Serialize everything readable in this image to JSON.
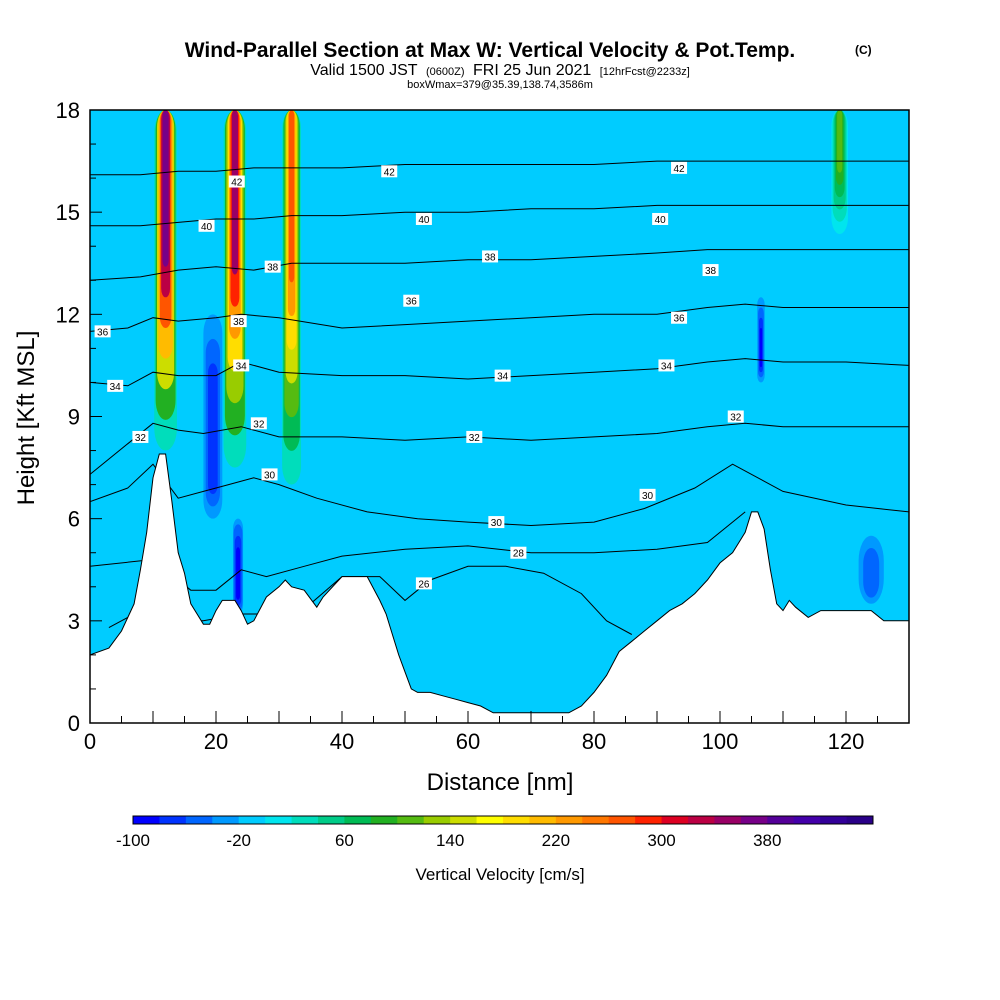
{
  "title": {
    "main": "Wind-Parallel Section at Max W: Vertical Velocity & Pot.Temp.",
    "copyright": "(C)",
    "valid_prefix": "Valid 1500 JST",
    "valid_utc": "(0600Z)",
    "valid_date": "FRI 25 Jun 2021",
    "forecast": "[12hrFcst@2233z]",
    "box_info": "boxWmax=379@35.39,138.74,3586m"
  },
  "chart_data": {
    "type": "heatmap",
    "xlabel": "Distance [nm]",
    "ylabel": "Height [Kft MSL]",
    "xlim": [
      0,
      130
    ],
    "ylim": [
      0,
      18
    ],
    "x_ticks": [
      0,
      20,
      40,
      60,
      80,
      100,
      120
    ],
    "x_tick_labels": [
      "0",
      "20",
      "40",
      "60",
      "80",
      "100",
      "120"
    ],
    "y_ticks": [
      0,
      3,
      6,
      9,
      12,
      15,
      18
    ],
    "y_tick_labels": [
      "0",
      "3",
      "6",
      "9",
      "12",
      "15",
      "18"
    ],
    "background_vv_cms": -20,
    "terrain": [
      [
        0,
        2.0
      ],
      [
        3,
        2.2
      ],
      [
        5,
        2.7
      ],
      [
        7,
        3.5
      ],
      [
        8,
        4.5
      ],
      [
        9,
        5.6
      ],
      [
        10,
        7.2
      ],
      [
        11,
        7.9
      ],
      [
        12,
        7.9
      ],
      [
        13,
        6.5
      ],
      [
        14,
        5.0
      ],
      [
        15,
        4.4
      ],
      [
        16,
        3.5
      ],
      [
        17,
        3.2
      ],
      [
        18,
        2.9
      ],
      [
        19,
        2.9
      ],
      [
        20,
        3.3
      ],
      [
        21,
        3.6
      ],
      [
        22,
        3.6
      ],
      [
        23,
        3.6
      ],
      [
        24,
        3.3
      ],
      [
        25,
        2.9
      ],
      [
        26,
        3.0
      ],
      [
        28,
        3.7
      ],
      [
        30,
        4.0
      ],
      [
        31,
        4.2
      ],
      [
        32,
        4.0
      ],
      [
        34,
        3.9
      ],
      [
        36,
        3.4
      ],
      [
        37,
        3.7
      ],
      [
        39,
        4.1
      ],
      [
        40,
        4.3
      ],
      [
        44,
        4.3
      ],
      [
        46,
        3.6
      ],
      [
        47,
        3.2
      ],
      [
        48,
        2.6
      ],
      [
        49,
        2.0
      ],
      [
        50,
        1.5
      ],
      [
        51,
        1.0
      ],
      [
        52,
        0.9
      ],
      [
        54,
        0.9
      ],
      [
        56,
        0.8
      ],
      [
        58,
        0.7
      ],
      [
        60,
        0.6
      ],
      [
        62,
        0.5
      ],
      [
        64,
        0.3
      ],
      [
        70,
        0.3
      ],
      [
        76,
        0.3
      ],
      [
        78,
        0.5
      ],
      [
        80,
        0.9
      ],
      [
        82,
        1.4
      ],
      [
        84,
        2.1
      ],
      [
        86,
        2.4
      ],
      [
        88,
        2.7
      ],
      [
        90,
        3.0
      ],
      [
        92,
        3.3
      ],
      [
        94,
        3.5
      ],
      [
        96,
        3.8
      ],
      [
        98,
        4.2
      ],
      [
        100,
        4.7
      ],
      [
        102,
        5.0
      ],
      [
        103,
        5.3
      ],
      [
        104,
        5.6
      ],
      [
        105,
        6.2
      ],
      [
        106,
        6.2
      ],
      [
        107,
        5.7
      ],
      [
        108,
        4.5
      ],
      [
        109,
        3.5
      ],
      [
        110,
        3.3
      ],
      [
        111,
        3.6
      ],
      [
        112,
        3.4
      ],
      [
        114,
        3.1
      ],
      [
        116,
        3.3
      ],
      [
        118,
        3.3
      ],
      [
        124,
        3.3
      ],
      [
        126,
        3.0
      ],
      [
        130,
        3.0
      ]
    ],
    "updraft_columns": [
      {
        "x": 12.0,
        "width": 1.8,
        "z_bottom": 8.0,
        "z_top": 18.0,
        "peak_vv_cms": 379
      },
      {
        "x": 23.0,
        "width": 1.8,
        "z_bottom": 7.5,
        "z_top": 18.0,
        "peak_vv_cms": 340
      },
      {
        "x": 32.0,
        "width": 1.5,
        "z_bottom": 7.0,
        "z_top": 18.0,
        "peak_vv_cms": 260
      },
      {
        "x": 119.0,
        "width": 1.5,
        "z_bottom": 14.0,
        "z_top": 18.0,
        "peak_vv_cms": 100
      }
    ],
    "downdraft_columns": [
      {
        "x": 19.5,
        "width": 1.5,
        "z_bottom": 6.0,
        "z_top": 12.0,
        "peak_vv_cms": -80
      },
      {
        "x": 23.5,
        "width": 0.8,
        "z_bottom": 3.2,
        "z_top": 6.0,
        "peak_vv_cms": -100
      },
      {
        "x": 106.5,
        "width": 0.6,
        "z_bottom": 10.0,
        "z_top": 12.5,
        "peak_vv_cms": -90
      },
      {
        "x": 124.0,
        "width": 2.0,
        "z_bottom": 3.5,
        "z_top": 5.5,
        "peak_vv_cms": -60
      }
    ],
    "theta_contours": [
      {
        "value": 26,
        "label": "26",
        "label_at": [
          53,
          4.1
        ],
        "points": [
          [
            3,
            2.8
          ],
          [
            7,
            3.2
          ],
          [
            12,
            3.0
          ],
          [
            18,
            3.0
          ],
          [
            24,
            3.2
          ],
          [
            28,
            3.2
          ],
          [
            35,
            3.5
          ],
          [
            40,
            4.3
          ],
          [
            46,
            4.3
          ],
          [
            50,
            3.6
          ],
          [
            54,
            4.2
          ],
          [
            60,
            4.6
          ],
          [
            66,
            4.6
          ],
          [
            72,
            4.4
          ],
          [
            78,
            3.8
          ],
          [
            82,
            3.0
          ],
          [
            86,
            2.6
          ]
        ]
      },
      {
        "value": 28,
        "label": "28",
        "label_at": [
          68,
          5.0
        ],
        "points": [
          [
            0,
            4.6
          ],
          [
            10,
            4.8
          ],
          [
            16,
            3.9
          ],
          [
            20,
            3.9
          ],
          [
            24,
            4.5
          ],
          [
            28,
            4.3
          ],
          [
            34,
            4.6
          ],
          [
            40,
            4.9
          ],
          [
            50,
            5.1
          ],
          [
            60,
            5.2
          ],
          [
            70,
            5.0
          ],
          [
            80,
            5.0
          ],
          [
            90,
            5.1
          ],
          [
            98,
            5.3
          ],
          [
            104,
            6.2
          ]
        ]
      },
      {
        "value": 30,
        "label": "30",
        "label_at": [
          28.5,
          7.3
        ],
        "points": [
          [
            0,
            6.5
          ],
          [
            6,
            6.9
          ],
          [
            10,
            7.6
          ],
          [
            14,
            6.6
          ],
          [
            18,
            6.8
          ],
          [
            22,
            7.0
          ],
          [
            26,
            7.2
          ],
          [
            30,
            7.0
          ],
          [
            36,
            6.6
          ],
          [
            44,
            6.2
          ],
          [
            52,
            6.0
          ],
          [
            60,
            5.9
          ],
          [
            70,
            5.8
          ],
          [
            80,
            5.9
          ],
          [
            88,
            6.3
          ],
          [
            96,
            6.9
          ],
          [
            102,
            7.6
          ],
          [
            110,
            6.8
          ],
          [
            120,
            6.4
          ],
          [
            130,
            6.2
          ]
        ]
      },
      {
        "value": 32,
        "label": "32",
        "label_at": [
          8,
          8.4
        ],
        "points": [
          [
            0,
            7.3
          ],
          [
            6,
            8.2
          ],
          [
            10,
            8.8
          ],
          [
            14,
            8.6
          ],
          [
            18,
            8.5
          ],
          [
            24,
            8.7
          ],
          [
            30,
            8.4
          ],
          [
            40,
            8.4
          ],
          [
            50,
            8.3
          ],
          [
            60,
            8.4
          ],
          [
            70,
            8.3
          ],
          [
            80,
            8.4
          ],
          [
            90,
            8.5
          ],
          [
            98,
            8.7
          ],
          [
            104,
            8.8
          ],
          [
            110,
            8.7
          ],
          [
            120,
            8.7
          ],
          [
            130,
            8.7
          ]
        ]
      },
      {
        "value": 34,
        "label": "34",
        "label_at": [
          4,
          9.9
        ],
        "points": [
          [
            0,
            10.0
          ],
          [
            6,
            9.9
          ],
          [
            10,
            10.3
          ],
          [
            14,
            10.2
          ],
          [
            20,
            10.2
          ],
          [
            24,
            10.6
          ],
          [
            30,
            10.3
          ],
          [
            40,
            10.2
          ],
          [
            50,
            10.2
          ],
          [
            60,
            10.1
          ],
          [
            70,
            10.2
          ],
          [
            80,
            10.3
          ],
          [
            90,
            10.4
          ],
          [
            98,
            10.6
          ],
          [
            104,
            10.7
          ],
          [
            110,
            10.6
          ],
          [
            120,
            10.6
          ],
          [
            130,
            10.5
          ]
        ]
      },
      {
        "value": 36,
        "label": "36",
        "label_at": [
          2,
          11.5
        ],
        "points": [
          [
            0,
            11.5
          ],
          [
            6,
            11.6
          ],
          [
            10,
            11.9
          ],
          [
            14,
            11.8
          ],
          [
            20,
            11.9
          ],
          [
            24,
            12.0
          ],
          [
            30,
            11.9
          ],
          [
            40,
            11.6
          ],
          [
            50,
            11.7
          ],
          [
            60,
            11.8
          ],
          [
            70,
            11.9
          ],
          [
            80,
            12.0
          ],
          [
            90,
            12.0
          ],
          [
            98,
            12.2
          ],
          [
            104,
            12.3
          ],
          [
            110,
            12.2
          ],
          [
            120,
            12.2
          ],
          [
            130,
            12.2
          ]
        ]
      },
      {
        "value": 38,
        "label": "38",
        "label_at": [
          29,
          13.4
        ],
        "points": [
          [
            0,
            13.0
          ],
          [
            8,
            13.1
          ],
          [
            14,
            13.3
          ],
          [
            20,
            13.4
          ],
          [
            26,
            13.3
          ],
          [
            32,
            13.5
          ],
          [
            40,
            13.5
          ],
          [
            50,
            13.5
          ],
          [
            60,
            13.6
          ],
          [
            70,
            13.6
          ],
          [
            80,
            13.7
          ],
          [
            90,
            13.8
          ],
          [
            98,
            13.9
          ],
          [
            104,
            13.9
          ],
          [
            110,
            13.9
          ],
          [
            120,
            13.9
          ],
          [
            130,
            13.9
          ]
        ]
      },
      {
        "value": 40,
        "label": "40",
        "label_at": [
          18.5,
          14.6
        ],
        "points": [
          [
            0,
            14.6
          ],
          [
            8,
            14.6
          ],
          [
            14,
            14.7
          ],
          [
            20,
            14.8
          ],
          [
            26,
            14.8
          ],
          [
            32,
            14.9
          ],
          [
            40,
            14.9
          ],
          [
            50,
            15.0
          ],
          [
            60,
            15.0
          ],
          [
            70,
            15.1
          ],
          [
            80,
            15.1
          ],
          [
            90,
            15.2
          ],
          [
            98,
            15.2
          ],
          [
            104,
            15.2
          ],
          [
            110,
            15.2
          ],
          [
            120,
            15.2
          ],
          [
            130,
            15.2
          ]
        ]
      },
      {
        "value": 42,
        "label": "42",
        "label_at": [
          47.5,
          16.2
        ],
        "points": [
          [
            0,
            16.1
          ],
          [
            8,
            16.1
          ],
          [
            14,
            16.2
          ],
          [
            20,
            16.2
          ],
          [
            26,
            16.3
          ],
          [
            32,
            16.3
          ],
          [
            40,
            16.3
          ],
          [
            50,
            16.4
          ],
          [
            60,
            16.4
          ],
          [
            70,
            16.4
          ],
          [
            80,
            16.4
          ],
          [
            90,
            16.5
          ],
          [
            98,
            16.5
          ],
          [
            104,
            16.5
          ],
          [
            110,
            16.5
          ],
          [
            120,
            16.5
          ],
          [
            130,
            16.5
          ]
        ]
      }
    ],
    "extra_contour_labels": [
      {
        "label": "42",
        "at": [
          23.3,
          15.9
        ]
      },
      {
        "label": "38",
        "at": [
          23.6,
          11.8
        ]
      },
      {
        "label": "34",
        "at": [
          24.0,
          10.5
        ]
      },
      {
        "label": "32",
        "at": [
          26.8,
          8.8
        ]
      },
      {
        "label": "40",
        "at": [
          53.0,
          14.8
        ]
      },
      {
        "label": "38",
        "at": [
          63.5,
          13.7
        ]
      },
      {
        "label": "36",
        "at": [
          51.0,
          12.4
        ]
      },
      {
        "label": "34",
        "at": [
          65.5,
          10.2
        ]
      },
      {
        "label": "32",
        "at": [
          61.0,
          8.4
        ]
      },
      {
        "label": "30",
        "at": [
          64.5,
          5.9
        ]
      },
      {
        "label": "30",
        "at": [
          88.5,
          6.7
        ]
      },
      {
        "label": "42",
        "at": [
          93.5,
          16.3
        ]
      },
      {
        "label": "40",
        "at": [
          90.5,
          14.8
        ]
      },
      {
        "label": "38",
        "at": [
          98.5,
          13.3
        ]
      },
      {
        "label": "36",
        "at": [
          93.5,
          11.9
        ]
      },
      {
        "label": "34",
        "at": [
          91.5,
          10.5
        ]
      },
      {
        "label": "32",
        "at": [
          102.5,
          9.0
        ]
      }
    ],
    "colorbar": {
      "label": "Vertical Velocity [cm/s]",
      "min": -100,
      "max": 460,
      "step": 20,
      "tick_values": [
        -100,
        -20,
        60,
        140,
        220,
        300,
        380
      ],
      "tick_labels": [
        "-100",
        "-20",
        "60",
        "140",
        "220",
        "300",
        "380"
      ],
      "colors": [
        "#0000ff",
        "#0033ff",
        "#0066ff",
        "#0099ff",
        "#00ccff",
        "#00e5ee",
        "#00ddbb",
        "#00cc88",
        "#00bb55",
        "#22b022",
        "#55bb11",
        "#99cc00",
        "#ccdd00",
        "#ffff00",
        "#ffdd00",
        "#ffbb00",
        "#ff9900",
        "#ff7700",
        "#ff5500",
        "#ff2200",
        "#dd0022",
        "#bb0044",
        "#990066",
        "#770088",
        "#550099",
        "#4400aa",
        "#330099",
        "#2a0088"
      ]
    }
  }
}
